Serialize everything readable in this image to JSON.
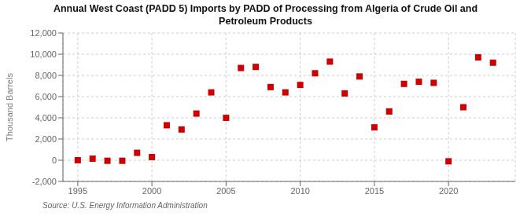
{
  "chart_data": {
    "type": "scatter",
    "title": "Annual West Coast (PADD 5) Imports by PADD of Processing from Algeria of Crude Oil and\nPetroleum Products",
    "ylabel": "Thousand Barrels",
    "annotation": "Source: U.S. Energy Information Administration",
    "x": [
      1995,
      1996,
      1997,
      1998,
      1999,
      2000,
      2001,
      2002,
      2003,
      2004,
      2005,
      2006,
      2007,
      2008,
      2009,
      2010,
      2011,
      2012,
      2013,
      2014,
      2015,
      2016,
      2017,
      2018,
      2019,
      2020,
      2021,
      2022,
      2023
    ],
    "values": [
      0,
      150,
      -50,
      -50,
      700,
      300,
      3300,
      2900,
      4400,
      6400,
      4000,
      8700,
      8800,
      6900,
      6400,
      7100,
      8200,
      9300,
      6300,
      7900,
      3100,
      4600,
      7200,
      7400,
      7300,
      -100,
      5000,
      9700,
      9200
    ],
    "color": "#cc0000",
    "marker": "square",
    "xlim": [
      1994.0,
      2024.5
    ],
    "ylim": [
      -2000,
      12000
    ],
    "xticks": [
      1995,
      2000,
      2005,
      2010,
      2015,
      2020
    ],
    "yticks": [
      {
        "value": -2000,
        "label": "-2,000"
      },
      0,
      {
        "value": 2000,
        "label": "2,000"
      },
      {
        "value": 4000,
        "label": "4,000"
      },
      {
        "value": 6000,
        "label": "6,000"
      },
      {
        "value": 8000,
        "label": "8,000"
      },
      {
        "value": 10000,
        "label": "10,000"
      },
      {
        "value": 12000,
        "label": "12,000"
      }
    ],
    "grid": true
  }
}
